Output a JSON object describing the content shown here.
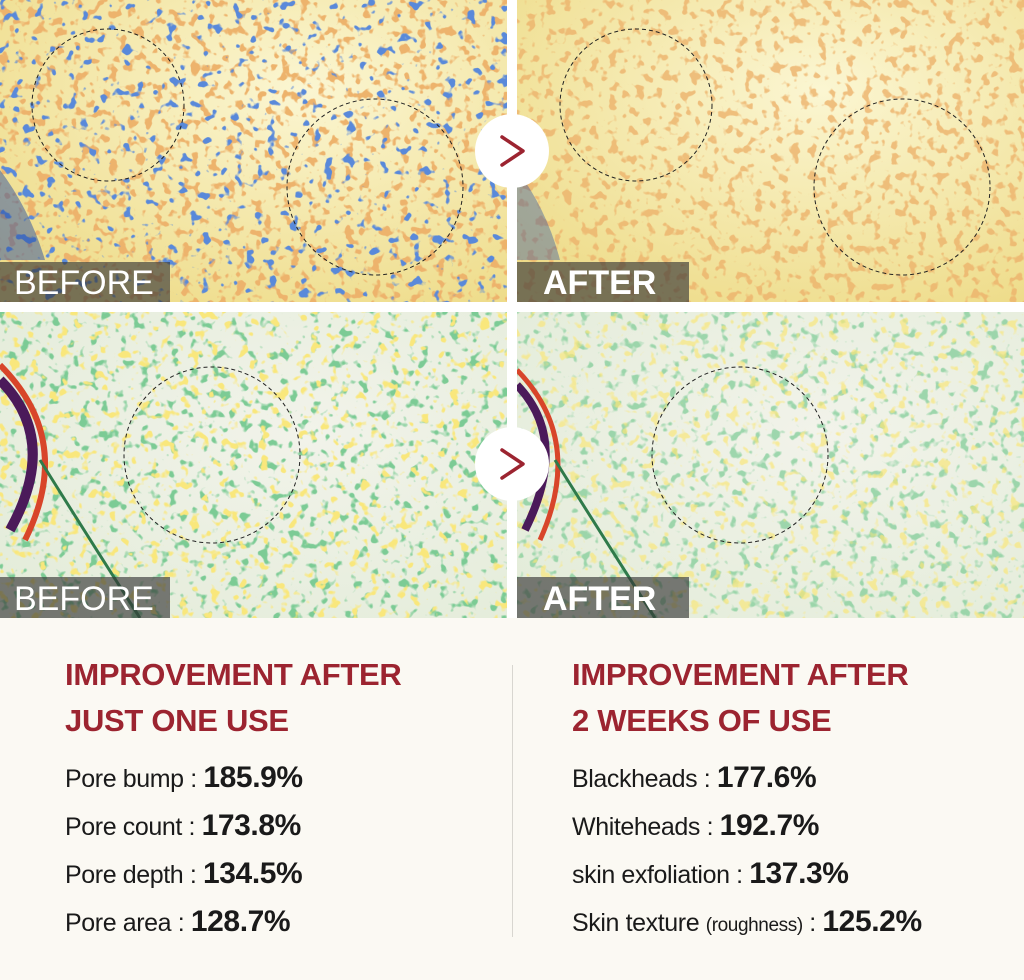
{
  "panels": [
    {
      "label": "BEFORE"
    },
    {
      "label": "AFTER"
    },
    {
      "label": "BEFORE"
    },
    {
      "label": "AFTER"
    }
  ],
  "sections": [
    {
      "title_lines": [
        "IMPROVEMENT AFTER",
        "JUST ONE USE"
      ],
      "items": [
        {
          "label": "Pore bump",
          "colon": ":",
          "value": "185.9%"
        },
        {
          "label": "Pore count",
          "colon": ":",
          "value": "173.8%"
        },
        {
          "label": "Pore depth",
          "colon": ":",
          "value": "134.5%"
        },
        {
          "label": "Pore area",
          "colon": ":",
          "value": "128.7%"
        }
      ]
    },
    {
      "title_lines": [
        "IMPROVEMENT AFTER",
        "2 WEEKS OF USE"
      ],
      "items": [
        {
          "label": "Blackheads",
          "colon": ":",
          "value": "177.6%"
        },
        {
          "label": "Whiteheads",
          "colon": ":",
          "value": "192.7%"
        },
        {
          "label": "skin exfoliation",
          "colon": ":",
          "value": "137.3%"
        },
        {
          "label": "Skin texture",
          "note": "(roughness)",
          "colon": ":",
          "value": "125.2%"
        }
      ]
    }
  ]
}
